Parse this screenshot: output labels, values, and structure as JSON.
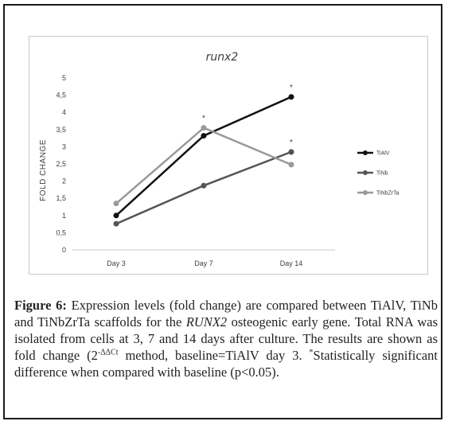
{
  "chart_data": {
    "type": "line",
    "title": "runx2",
    "ylabel": "FOLD CHANGE",
    "xlabel": "",
    "categories": [
      "Day 3",
      "Day 7",
      "Day 14"
    ],
    "ylim": [
      0,
      5
    ],
    "yticks": [
      "0",
      "0,5",
      "1",
      "1,5",
      "2",
      "2,5",
      "3",
      "3,5",
      "4",
      "4,5",
      "5"
    ],
    "grid": false,
    "legend_position": "right",
    "series": [
      {
        "name": "TiAlV",
        "values": [
          1.0,
          3.32,
          4.45
        ],
        "color": "#111111"
      },
      {
        "name": "TiNb",
        "values": [
          0.76,
          1.87,
          2.85
        ],
        "color": "#555555"
      },
      {
        "name": "TiNbZrTa",
        "values": [
          1.35,
          3.55,
          2.48
        ],
        "color": "#999999"
      }
    ],
    "annotations": [
      {
        "text": "*",
        "series": "TiAlV",
        "x": "Day 14",
        "y": 4.45
      },
      {
        "text": "*",
        "series": "TiNbZrTa",
        "x": "Day 7",
        "y": 3.55
      },
      {
        "text": "*",
        "series": "TiNb",
        "x": "Day 14",
        "y": 2.85
      },
      {
        "text": "*",
        "series": "TiNbZrTa",
        "x": "Day 14",
        "y": 2.48
      }
    ]
  },
  "caption": {
    "label": "Figure 6:",
    "text_1": " Expression levels (fold change) are compared between TiAlV, TiNb and TiNbZrTa scaffolds for the ",
    "gene": "RUNX2",
    "text_2": " osteogenic early gene. Total RNA was isolated from cells at 3, 7 and 14 days after culture. The results are shown as fold change (2",
    "exponent": "-ΔΔCt",
    "text_3": " method, baseline=TiAlV day 3. ",
    "footnote_mark": "*",
    "text_4": "Statistically significant difference when compared with baseline (p<0.05)."
  }
}
